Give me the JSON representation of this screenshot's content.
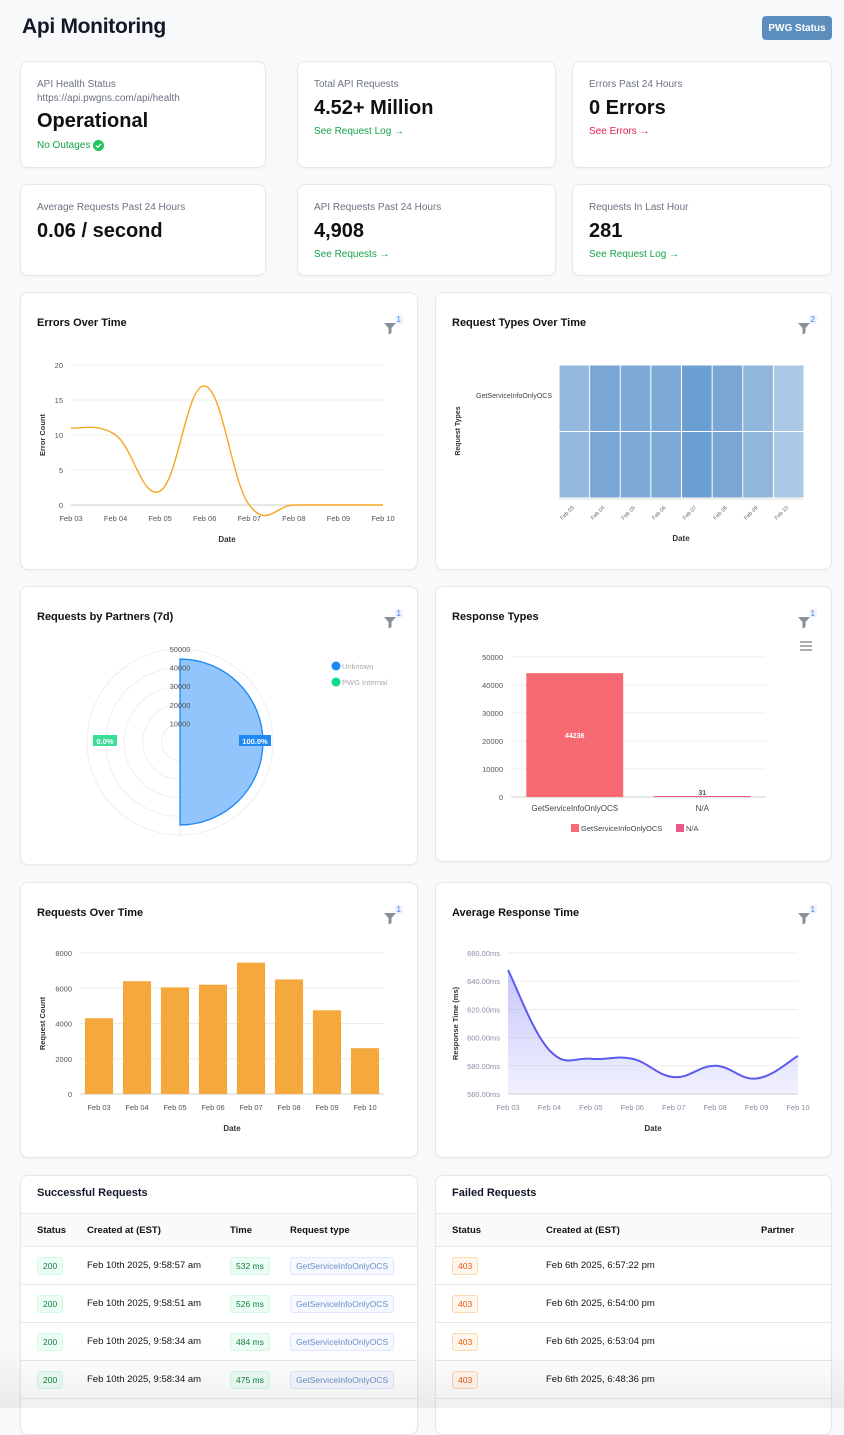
{
  "header": {
    "title": "Api Monitoring",
    "status_button": "PWG Status"
  },
  "stats": [
    {
      "label": "API Health Status",
      "sub": "https://api.pwgns.com/api/health",
      "value": "Operational",
      "link": "No Outages"
    },
    {
      "label": "Total API Requests",
      "value": "4.52+ Million",
      "link": "See Request Log"
    },
    {
      "label": "Errors Past 24 Hours",
      "value": "0 Errors",
      "link": "See Errors"
    },
    {
      "label": "Average Requests Past 24 Hours",
      "value": "0.06 / second"
    },
    {
      "label": "API Requests Past 24 Hours",
      "value": "4,908",
      "link": "See Requests"
    },
    {
      "label": "Requests In Last Hour",
      "value": "281",
      "link": "See Request Log"
    }
  ],
  "chart_data": [
    {
      "id": "errors",
      "type": "line",
      "title": "Errors Over Time",
      "filter_count": "1",
      "xlabel": "Date",
      "ylabel": "Error Count",
      "categories": [
        "Feb 03",
        "Feb 04",
        "Feb 05",
        "Feb 06",
        "Feb 07",
        "Feb 08",
        "Feb 09",
        "Feb 10"
      ],
      "values": [
        11,
        10,
        2,
        17,
        0,
        0,
        0,
        0
      ],
      "ylim": [
        0,
        20
      ],
      "yticks": [
        0,
        5,
        10,
        15,
        20
      ],
      "color": "#f5a623"
    },
    {
      "id": "reqtypes",
      "type": "heatmap",
      "title": "Request Types Over Time",
      "filter_count": "2",
      "xlabel": "Date",
      "ylabel": "Request Types",
      "row_label": "GetServiceInfoOnlyOCS",
      "categories": [
        "Feb 03",
        "Feb 04",
        "Feb 05",
        "Feb 06",
        "Feb 07",
        "Feb 08",
        "Feb 09",
        "Feb 10"
      ],
      "values": [
        4300,
        6400,
        6050,
        6200,
        7450,
        6500,
        4750,
        2600
      ],
      "color": "#5b93cc"
    },
    {
      "id": "partners",
      "type": "polar",
      "title": "Requests by Partners (7d)",
      "filter_count": "1",
      "rticks": [
        10000,
        20000,
        30000,
        40000,
        50000
      ],
      "rmax": 50000,
      "slices": [
        {
          "name": "Unknown",
          "value": 44600,
          "pct": "100.0%",
          "color": "#1e88f5"
        },
        {
          "name": "PWG Internal",
          "value": 0,
          "pct": "0.0%",
          "color": "#10d98a"
        }
      ]
    },
    {
      "id": "responses",
      "type": "bar",
      "title": "Response Types",
      "filter_count": "1",
      "categories": [
        "GetServiceInfoOnlyOCS",
        "N/A"
      ],
      "values": [
        44236,
        31
      ],
      "labels": [
        "44236",
        "31"
      ],
      "ylim": [
        0,
        50000
      ],
      "yticks": [
        0,
        10000,
        20000,
        30000,
        40000,
        50000
      ],
      "colors": [
        "#f76a74",
        "#e8588a"
      ]
    },
    {
      "id": "reqtime",
      "type": "bar",
      "title": "Requests Over Time",
      "filter_count": "1",
      "xlabel": "Date",
      "ylabel": "Request Count",
      "categories": [
        "Feb 03",
        "Feb 04",
        "Feb 05",
        "Feb 06",
        "Feb 07",
        "Feb 08",
        "Feb 09",
        "Feb 10"
      ],
      "values": [
        4300,
        6400,
        6050,
        6200,
        7450,
        6500,
        4750,
        2600
      ],
      "ylim": [
        0,
        8000
      ],
      "yticks": [
        0,
        2000,
        4000,
        6000,
        8000
      ],
      "color": "#f5a93c"
    },
    {
      "id": "resptime",
      "type": "area",
      "title": "Average Response Time",
      "filter_count": "1",
      "xlabel": "Date",
      "ylabel": "Response Time (ms)",
      "categories": [
        "Feb 03",
        "Feb 04",
        "Feb 05",
        "Feb 06",
        "Feb 07",
        "Feb 08",
        "Feb 09",
        "Feb 10"
      ],
      "values": [
        648,
        591,
        585,
        585,
        572,
        580,
        571,
        587
      ],
      "ylim": [
        560,
        660
      ],
      "yticks": [
        "560.00ms",
        "580.00ms",
        "600.00ms",
        "620.00ms",
        "640.00ms",
        "660.00ms"
      ],
      "color": "#5b5bf0"
    }
  ],
  "successful": {
    "title": "Successful Requests",
    "columns": [
      "Status",
      "Created at (EST)",
      "Time",
      "Request type"
    ],
    "rows": [
      [
        "200",
        "Feb 10th 2025, 9:58:57 am",
        "532 ms",
        "GetServiceInfoOnlyOCS"
      ],
      [
        "200",
        "Feb 10th 2025, 9:58:51 am",
        "526 ms",
        "GetServiceInfoOnlyOCS"
      ],
      [
        "200",
        "Feb 10th 2025, 9:58:34 am",
        "484 ms",
        "GetServiceInfoOnlyOCS"
      ],
      [
        "200",
        "Feb 10th 2025, 9:58:34 am",
        "475 ms",
        "GetServiceInfoOnlyOCS"
      ]
    ]
  },
  "failed": {
    "title": "Failed Requests",
    "columns": [
      "Status",
      "Created at (EST)",
      "Partner"
    ],
    "rows": [
      [
        "403",
        "Feb 6th 2025, 6:57:22 pm",
        ""
      ],
      [
        "403",
        "Feb 6th 2025, 6:54:00 pm",
        ""
      ],
      [
        "403",
        "Feb 6th 2025, 6:53:04 pm",
        ""
      ],
      [
        "403",
        "Feb 6th 2025, 6:48:36 pm",
        ""
      ]
    ]
  }
}
